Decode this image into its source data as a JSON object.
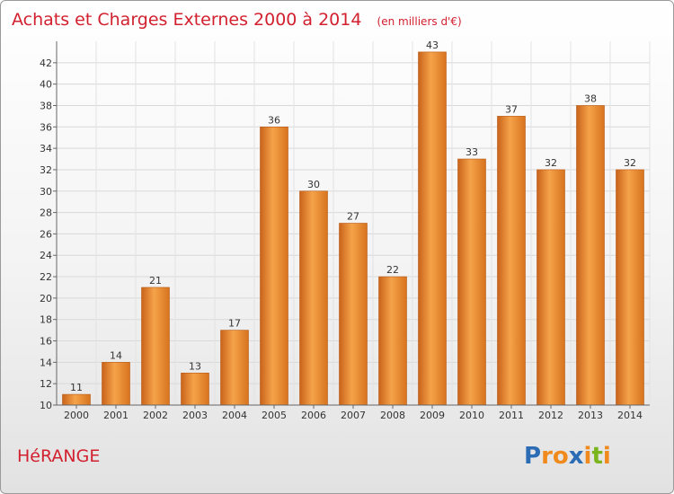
{
  "chart_data": {
    "type": "bar",
    "title": "Achats et Charges Externes 2000 à 2014",
    "unit": "(en milliers d'€)",
    "categories": [
      "2000",
      "2001",
      "2002",
      "2003",
      "2004",
      "2005",
      "2006",
      "2007",
      "2008",
      "2009",
      "2010",
      "2011",
      "2012",
      "2013",
      "2014"
    ],
    "values": [
      11,
      14,
      21,
      13,
      17,
      36,
      30,
      27,
      22,
      43,
      33,
      37,
      32,
      38,
      32
    ],
    "ylim": [
      10,
      44
    ],
    "yticks": [
      10,
      12,
      14,
      16,
      18,
      20,
      22,
      24,
      26,
      28,
      30,
      32,
      34,
      36,
      38,
      40,
      42
    ],
    "grid": true,
    "bar_color": "#e8832a"
  },
  "place_name": "HéRANGE",
  "brand": {
    "letters": [
      "P",
      "r",
      "o",
      "x",
      "i",
      "t",
      "i"
    ],
    "colors": [
      "#2b6cb5",
      "#f08a1d",
      "#f08a1d",
      "#2b6cb5",
      "#f08a1d",
      "#7ab51d",
      "#f08a1d"
    ]
  }
}
